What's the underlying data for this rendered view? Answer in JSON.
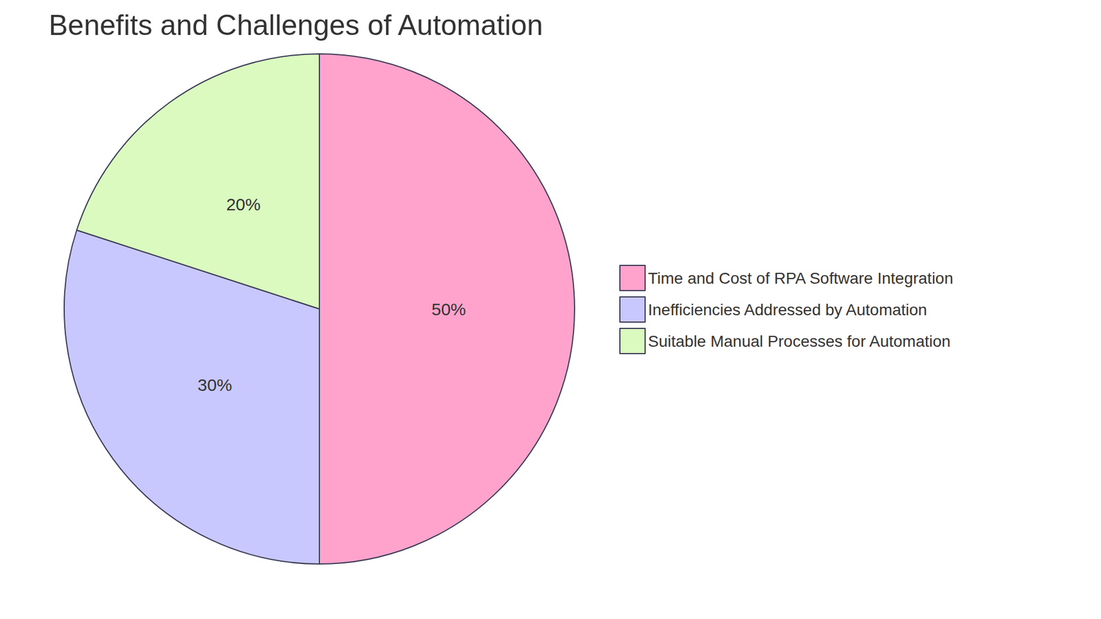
{
  "chart_data": {
    "type": "pie",
    "title": "Benefits and Challenges of Automation",
    "categories": [
      "Time and Cost of RPA Software Integration",
      "Inefficiencies Addressed by Automation",
      "Suitable Manual Processes for Automation"
    ],
    "values": [
      50,
      30,
      20
    ],
    "value_labels": [
      "50%",
      "30%",
      "20%"
    ],
    "colors": [
      "#ffa3cc",
      "#c8c8ff",
      "#dafac0"
    ],
    "data_labels": true,
    "legend": "right"
  }
}
